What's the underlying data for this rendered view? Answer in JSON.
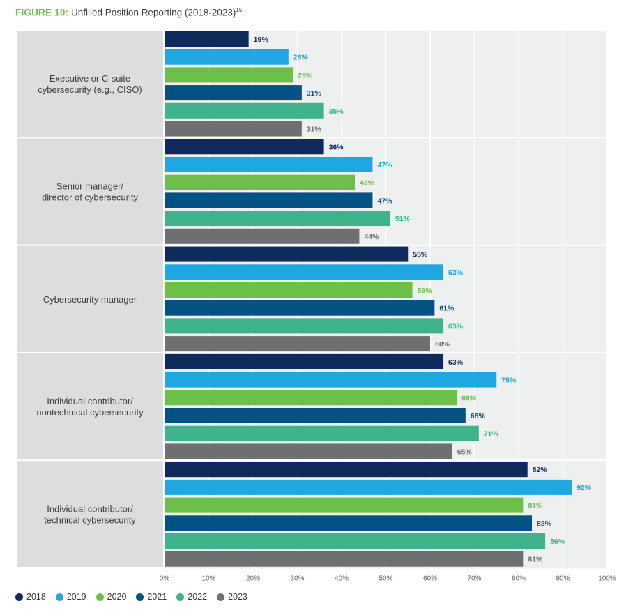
{
  "figure": {
    "label": "FIGURE 10:",
    "title": "Unfilled Position Reporting (2018-2023)",
    "footnote": "15"
  },
  "chart_data": {
    "type": "bar",
    "orientation": "horizontal",
    "categories": [
      "Executive or C-suite\ncybersecurity (e.g., CISO)",
      "Senior manager/\ndirector of cybersecurity",
      "Cybersecurity manager",
      "Individual contributor/\nnontechnical cybersecurity",
      "Individual contributor/\ntechnical cybersecurity"
    ],
    "series": [
      {
        "name": "2018",
        "color": "#0f2a5c",
        "values": [
          19,
          36,
          55,
          63,
          82
        ]
      },
      {
        "name": "2019",
        "color": "#1ea7e0",
        "values": [
          28,
          47,
          63,
          75,
          92
        ]
      },
      {
        "name": "2020",
        "color": "#6cc04a",
        "values": [
          29,
          43,
          56,
          66,
          81
        ]
      },
      {
        "name": "2021",
        "color": "#045184",
        "values": [
          31,
          47,
          61,
          68,
          83
        ]
      },
      {
        "name": "2022",
        "color": "#3eb28b",
        "values": [
          36,
          51,
          63,
          71,
          86
        ]
      },
      {
        "name": "2023",
        "color": "#6f6f71",
        "values": [
          31,
          44,
          60,
          65,
          81
        ]
      }
    ],
    "value_suffix": "%",
    "xlim": [
      0,
      100
    ],
    "x_ticks": [
      "0%",
      "10%",
      "20%",
      "30%",
      "40%",
      "50%",
      "60%",
      "70%",
      "80%",
      "90%",
      "100%"
    ],
    "grid": true,
    "legend_position": "bottom-left"
  }
}
